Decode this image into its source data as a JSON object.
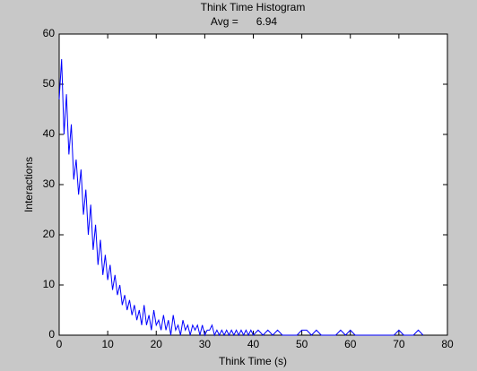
{
  "chart_data": {
    "type": "line",
    "title": "Think Time Histogram",
    "subtitle": "Avg =      6.94",
    "x_label": "Think Time (s)",
    "y_label": "Interactions",
    "color": "#0000ff",
    "x": [
      0,
      0.5,
      1,
      1.5,
      2,
      2.5,
      3,
      3.5,
      4,
      4.5,
      5,
      5.5,
      6,
      6.5,
      7,
      7.5,
      8,
      8.5,
      9,
      9.5,
      10,
      10.5,
      11,
      11.5,
      12,
      12.5,
      13,
      13.5,
      14,
      14.5,
      15,
      15.5,
      16,
      16.5,
      17,
      17.5,
      18,
      18.5,
      19,
      19.5,
      20,
      20.5,
      21,
      21.5,
      22,
      22.5,
      23,
      23.5,
      24,
      24.5,
      25,
      25.5,
      26,
      26.5,
      27,
      27.5,
      28,
      28.5,
      29,
      29.5,
      30,
      30.5,
      31,
      31.5,
      32,
      32.5,
      33,
      33.5,
      34,
      34.5,
      35,
      35.5,
      36,
      36.5,
      37,
      37.5,
      38,
      38.5,
      39,
      39.5,
      40,
      41,
      42,
      43,
      44,
      45,
      46,
      47,
      48,
      49,
      50,
      51,
      52,
      53,
      54,
      55,
      56,
      57,
      58,
      59,
      60,
      61,
      62,
      63,
      64,
      65,
      66,
      67,
      68,
      69,
      70,
      71,
      72,
      73,
      74,
      75
    ],
    "values": [
      47,
      55,
      40,
      48,
      36,
      42,
      31,
      35,
      28,
      33,
      24,
      29,
      20,
      26,
      17,
      22,
      14,
      19,
      12,
      16,
      11,
      14,
      9,
      12,
      8,
      10,
      6,
      8,
      5,
      7,
      4,
      6,
      3,
      5,
      2,
      6,
      2,
      4,
      1,
      5,
      2,
      3,
      1,
      4,
      1,
      3,
      0,
      4,
      1,
      2,
      0,
      3,
      1,
      2,
      0,
      2,
      1,
      2,
      0,
      2,
      0,
      1,
      1,
      2,
      0,
      1,
      0,
      1,
      0,
      1,
      0,
      1,
      0,
      1,
      0,
      1,
      0,
      1,
      0,
      1,
      0,
      1,
      0,
      1,
      0,
      1,
      0,
      0,
      0,
      0,
      1,
      1,
      0,
      1,
      0,
      0,
      0,
      0,
      1,
      0,
      1,
      0,
      0,
      0,
      0,
      0,
      0,
      0,
      0,
      0,
      1,
      0,
      0,
      0,
      1,
      0
    ],
    "xlim": [
      0,
      80
    ],
    "ylim": [
      0,
      60
    ],
    "xticks": [
      0,
      10,
      20,
      30,
      40,
      50,
      60,
      70,
      80
    ],
    "yticks": [
      0,
      10,
      20,
      30,
      40,
      50,
      60
    ]
  }
}
